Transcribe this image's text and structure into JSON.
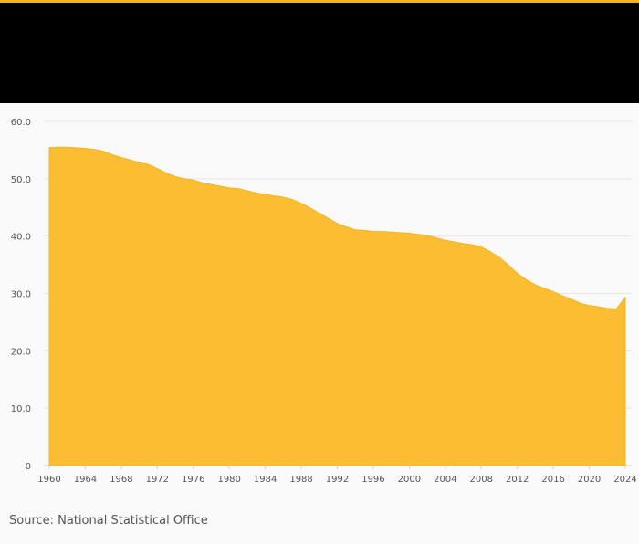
{
  "source_text": "Source: National Statistical Office",
  "colors": {
    "accent": "#f5b324",
    "area_fill": "#fbbe33",
    "header": "#000000",
    "background": "#fafafa",
    "grid": "#e6e6e6"
  },
  "chart_data": {
    "type": "area",
    "title": "",
    "xlabel": "",
    "ylabel": "",
    "xlim": [
      1960,
      2024
    ],
    "ylim": [
      0,
      60
    ],
    "grid": true,
    "legend": "none",
    "y_ticks": [
      0,
      10,
      20,
      30,
      40,
      50,
      60
    ],
    "y_tick_labels": [
      "0",
      "10.0",
      "20.0",
      "30.0",
      "40.0",
      "50.0",
      "60.0"
    ],
    "x_ticks": [
      1960,
      1964,
      1968,
      1972,
      1976,
      1980,
      1984,
      1988,
      1992,
      1996,
      2000,
      2004,
      2008,
      2012,
      2016,
      2020,
      2024
    ],
    "x_tick_labels": [
      "1960",
      "1964",
      "1968",
      "1972",
      "1976",
      "1980",
      "1984",
      "1988",
      "1992",
      "1996",
      "2000",
      "2004",
      "2008",
      "2012",
      "2016",
      "2020",
      "2024"
    ],
    "x": [
      1960,
      1961,
      1962,
      1963,
      1964,
      1965,
      1966,
      1967,
      1968,
      1969,
      1970,
      1971,
      1972,
      1973,
      1974,
      1975,
      1976,
      1977,
      1978,
      1979,
      1980,
      1981,
      1982,
      1983,
      1984,
      1985,
      1986,
      1987,
      1988,
      1989,
      1990,
      1991,
      1992,
      1993,
      1994,
      1995,
      1996,
      1997,
      1998,
      1999,
      2000,
      2001,
      2002,
      2003,
      2004,
      2005,
      2006,
      2007,
      2008,
      2009,
      2010,
      2011,
      2012,
      2013,
      2014,
      2015,
      2016,
      2017,
      2018,
      2019,
      2020,
      2021,
      2022,
      2023,
      2024
    ],
    "values": [
      55.4,
      55.5,
      55.5,
      55.4,
      55.3,
      55.1,
      54.8,
      54.2,
      53.7,
      53.3,
      52.8,
      52.5,
      51.8,
      51.0,
      50.4,
      50.0,
      49.8,
      49.3,
      49.0,
      48.7,
      48.4,
      48.3,
      47.9,
      47.5,
      47.3,
      47.0,
      46.8,
      46.4,
      45.7,
      44.9,
      44.0,
      43.1,
      42.2,
      41.6,
      41.1,
      41.0,
      40.8,
      40.8,
      40.7,
      40.6,
      40.5,
      40.3,
      40.1,
      39.7,
      39.3,
      39.0,
      38.7,
      38.5,
      38.1,
      37.3,
      36.3,
      35.0,
      33.5,
      32.4,
      31.5,
      30.9,
      30.3,
      29.6,
      29.0,
      28.3,
      27.9,
      27.7,
      27.4,
      27.3,
      29.3
    ]
  }
}
